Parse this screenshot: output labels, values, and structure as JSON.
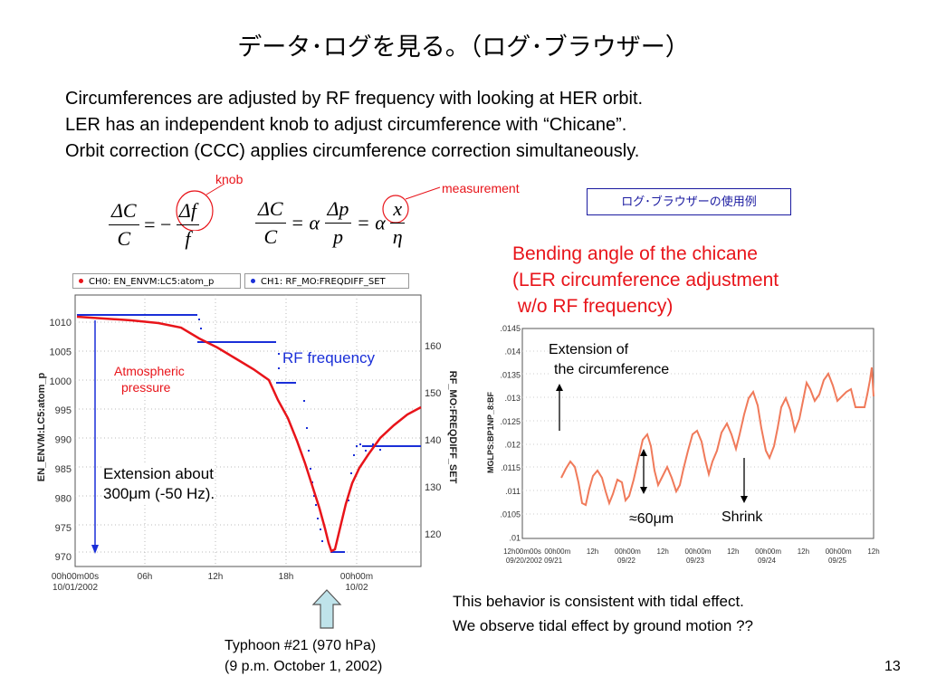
{
  "title": "データ･ログを見る。（ログ･ブラウザー）",
  "intro": [
    "Circumferences are adjusted by RF frequency with looking at HER orbit.",
    "LER has an independent knob to adjust circumference with “Chicane”.",
    "Orbit correction (CCC) applies circumference correction simultaneously."
  ],
  "annotations": {
    "knob": "knob",
    "measurement": "measurement"
  },
  "badge": "ログ･ブラウザーの使用例",
  "formula": {
    "dC": "ΔC",
    "C": "C",
    "minus": "= −",
    "df": "Δf",
    "f": "f",
    "eq1": "= α",
    "dp": "Δp",
    "p": "p",
    "eq2": "= α",
    "x": "x",
    "eta": "η"
  },
  "chart_left": {
    "legend": [
      {
        "label": "CH0: EN_ENVM:LC5:atom_p",
        "color": "#e8141a"
      },
      {
        "label": "CH1: RF_MO:FREQDIFF_SET",
        "color": "#1a2fd8"
      }
    ],
    "y_left_label": "EN_ENVM:LC5:atom_p",
    "y_right_label": "RF_MO:FREQDIFF_SET",
    "y_left_ticks": [
      "1010",
      "1005",
      "1000",
      "995",
      "990",
      "985",
      "980",
      "975",
      "970"
    ],
    "y_right_ticks": [
      "160",
      "150",
      "140",
      "130",
      "120"
    ],
    "x_ticks": [
      "00h00m00s",
      "06h",
      "12h",
      "18h",
      "00h00m"
    ],
    "x_dates": [
      "10/01/2002",
      "10/02"
    ],
    "atm_label_1": "Atmospheric",
    "atm_label_2": "pressure",
    "rf_label": "RF frequency",
    "ext_label_1": "Extension about",
    "ext_label_2": "300μm (-50 Hz)."
  },
  "chart_right": {
    "heading": [
      "Bending angle of the chicane",
      "(LER circumference adjustment",
      " w/o RF frequency)"
    ],
    "y_label": "MGLPS:BP1NP_8:BF",
    "y_ticks": [
      ".0145",
      ".014",
      ".0135",
      ".013",
      ".0125",
      ".012",
      ".0115",
      ".011",
      ".0105",
      ".01"
    ],
    "x_ticks": [
      "12h00m00s",
      "00h00m",
      "12h",
      "00h00m",
      "12h",
      "00h00m",
      "12h",
      "00h00m",
      "12h",
      "00h00m",
      "12h"
    ],
    "x_dates": [
      "09/20/2002 09/21",
      "09/22",
      "09/23",
      "09/24",
      "09/25"
    ],
    "ext_label_1": "Extension of",
    "ext_label_2": "the circumference",
    "amp_label": "≈60μm",
    "shrink_label": "Shrink"
  },
  "bottom_text": [
    "This behavior is consistent with tidal effect.",
    "We observe tidal effect by ground motion ??"
  ],
  "typhoon": [
    "Typhoon #21 (970 hPa)",
    "(9 p.m. October 1, 2002)"
  ],
  "page_number": "13",
  "colors": {
    "red": "#e8141a",
    "blue": "#1a2fd8",
    "salmon": "#f07a5a",
    "arrow_fill": "#bfe3ea"
  }
}
